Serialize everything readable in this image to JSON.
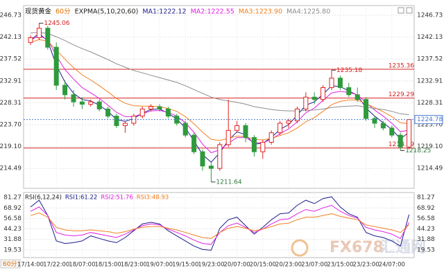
{
  "chart_data": [
    {
      "type": "candlestick",
      "title": "现货黄金",
      "period": "60分",
      "indicator": "EXPMA(5,10,20,60)",
      "categories": [
        "17/14:00",
        null,
        null,
        "17/22:00",
        null,
        null,
        "18/07:00",
        null,
        null,
        "18/15:00",
        null,
        null,
        "18/23:00",
        null,
        null,
        "19/07:00",
        null,
        null,
        "19/15:00",
        null,
        null,
        "19/23:00",
        null,
        null,
        "20/07:00",
        null,
        null,
        "20/15:00",
        null,
        null,
        "20/23:00",
        null,
        null,
        "23/07:00",
        null,
        null,
        "23/15:00",
        null,
        null,
        "23/23:00",
        null,
        null,
        "24/07:00",
        null,
        null
      ],
      "open": [
        1241.0,
        1242.0,
        1244.0,
        1240.0,
        1232.0,
        1230.0,
        1228.5,
        1228.0,
        1228.5,
        1227.0,
        1225.5,
        1223.5,
        1224.0,
        1225.5,
        1227.0,
        1227.5,
        1227.0,
        1225.5,
        1224.0,
        1221.5,
        1218.0,
        1215.0,
        1214.5,
        1219.5,
        1222.5,
        1223.5,
        1221.0,
        1218.0,
        1220.0,
        1222.0,
        1224.0,
        1224.5,
        1227.0,
        1229.5,
        1229.0,
        1231.5,
        1233.5,
        1231.5,
        1230.0,
        1229.0,
        1225.0,
        1224.0,
        1223.0,
        1221.5,
        1219.0
      ],
      "high": [
        1242.5,
        1245.06,
        1244.5,
        1241.0,
        1233.0,
        1231.0,
        1229.5,
        1229.0,
        1229.0,
        1227.5,
        1226.0,
        1224.5,
        1226.0,
        1227.5,
        1228.0,
        1228.0,
        1227.5,
        1226.0,
        1224.5,
        1222.0,
        1218.5,
        1216.0,
        1220.0,
        1229.0,
        1224.5,
        1224.0,
        1221.5,
        1220.5,
        1222.5,
        1224.5,
        1225.0,
        1227.5,
        1230.5,
        1230.5,
        1232.0,
        1235.18,
        1234.0,
        1232.5,
        1231.5,
        1229.5,
        1225.5,
        1224.5,
        1223.5,
        1222.0,
        1224.78
      ],
      "low": [
        1240.5,
        1241.5,
        1239.5,
        1231.0,
        1229.0,
        1227.5,
        1227.0,
        1227.5,
        1226.5,
        1225.0,
        1223.0,
        1222.0,
        1223.5,
        1225.0,
        1226.5,
        1226.5,
        1225.0,
        1223.5,
        1221.0,
        1217.5,
        1214.0,
        1211.64,
        1214.0,
        1219.0,
        1222.0,
        1220.0,
        1217.0,
        1216.5,
        1219.5,
        1221.5,
        1223.0,
        1224.0,
        1226.5,
        1228.0,
        1228.5,
        1231.0,
        1231.0,
        1229.5,
        1228.5,
        1224.5,
        1223.0,
        1222.5,
        1221.0,
        1218.25,
        1218.5
      ],
      "close": [
        1242.0,
        1244.0,
        1240.0,
        1232.0,
        1230.0,
        1228.5,
        1228.0,
        1228.5,
        1227.0,
        1225.5,
        1223.5,
        1224.0,
        1225.5,
        1227.0,
        1227.5,
        1227.0,
        1225.5,
        1224.0,
        1221.5,
        1218.0,
        1215.0,
        1214.5,
        1219.5,
        1222.5,
        1223.5,
        1221.0,
        1218.0,
        1220.0,
        1222.0,
        1224.0,
        1224.5,
        1227.0,
        1229.5,
        1229.0,
        1231.5,
        1233.5,
        1231.5,
        1230.0,
        1229.0,
        1225.0,
        1224.0,
        1223.0,
        1221.5,
        1219.0,
        1224.78
      ],
      "up_color": "#e02020",
      "down_color": "#2e9a3c",
      "series": [
        {
          "name": "MA1:1222.12",
          "color": "#1c1c8c",
          "values": [
            1241.5,
            1242.9,
            1241.3,
            1236.2,
            1232.7,
            1230.3,
            1229.0,
            1228.7,
            1227.8,
            1226.5,
            1224.8,
            1224.4,
            1225.0,
            1226.1,
            1226.9,
            1227.0,
            1226.1,
            1224.9,
            1223.0,
            1220.3,
            1217.4,
            1215.8,
            1217.8,
            1220.4,
            1222.2,
            1221.6,
            1219.6,
            1219.8,
            1221.0,
            1222.7,
            1223.7,
            1225.7,
            1227.8,
            1228.5,
            1230.1,
            1231.9,
            1231.7,
            1230.8,
            1229.9,
            1227.2,
            1225.5,
            1224.1,
            1222.7,
            1220.7,
            1222.12
          ]
        },
        {
          "name": "MA2:1222.55",
          "color": "#e020e0",
          "values": [
            1241.5,
            1242.4,
            1241.6,
            1238.2,
            1235.3,
            1233.3,
            1231.5,
            1230.4,
            1229.2,
            1227.8,
            1226.3,
            1225.4,
            1225.4,
            1226.0,
            1226.6,
            1226.7,
            1226.3,
            1225.5,
            1224.1,
            1222.1,
            1219.6,
            1217.8,
            1218.4,
            1219.8,
            1221.0,
            1221.0,
            1219.9,
            1219.9,
            1220.6,
            1221.8,
            1222.8,
            1224.3,
            1226.2,
            1227.2,
            1228.8,
            1230.4,
            1230.7,
            1230.5,
            1230.0,
            1228.3,
            1226.8,
            1225.5,
            1224.0,
            1222.2,
            1222.55
          ]
        },
        {
          "name": "MA3:1223.90",
          "color": "#f08020",
          "values": [
            1241.0,
            1241.6,
            1241.3,
            1239.4,
            1237.5,
            1235.7,
            1234.2,
            1233.1,
            1231.9,
            1230.6,
            1229.2,
            1228.2,
            1227.7,
            1227.6,
            1227.6,
            1227.5,
            1227.1,
            1226.5,
            1225.4,
            1223.9,
            1222.1,
            1220.6,
            1220.4,
            1220.8,
            1221.3,
            1221.2,
            1220.6,
            1220.5,
            1220.8,
            1221.4,
            1222.0,
            1223.0,
            1224.3,
            1225.2,
            1226.5,
            1227.9,
            1228.6,
            1228.9,
            1228.9,
            1228.1,
            1227.3,
            1226.4,
            1225.4,
            1224.1,
            1223.9
          ]
        },
        {
          "name": "MA4:1225.80",
          "color": "#8c8c8c",
          "values": [
            1243.0,
            1243.1,
            1242.9,
            1242.2,
            1241.4,
            1240.5,
            1239.7,
            1239.0,
            1238.2,
            1237.4,
            1236.5,
            1235.8,
            1235.1,
            1234.6,
            1234.1,
            1233.6,
            1233.1,
            1232.6,
            1231.9,
            1231.1,
            1230.3,
            1229.5,
            1229.0,
            1228.7,
            1228.4,
            1228.0,
            1227.5,
            1227.2,
            1226.9,
            1226.7,
            1226.6,
            1226.6,
            1226.7,
            1226.8,
            1227.0,
            1227.3,
            1227.5,
            1227.6,
            1227.7,
            1227.4,
            1227.1,
            1226.9,
            1226.5,
            1226.0,
            1225.8
          ]
        }
      ],
      "levels": [
        1235.36,
        1229.29,
        1218.79
      ],
      "level_color": "#d42020",
      "ylim": [
        1210.3,
        1248.77
      ],
      "yticks": [
        1246.73,
        1242.13,
        1237.52,
        1232.91,
        1228.31,
        {
          "value": 1223.7,
          "label": "1223.70"
        },
        {
          "value": 1219.1,
          "label": "1219.10"
        },
        1214.49
      ],
      "grid": true
    },
    {
      "type": "line",
      "title": "RSI(6,12,24)",
      "series": [
        {
          "name": "RSI1:61.22",
          "color": "#1c1c8c",
          "values": [
            70,
            78,
            60,
            30,
            27,
            28,
            30,
            36,
            33,
            30,
            28,
            34,
            42,
            50,
            52,
            50,
            42,
            36,
            30,
            24,
            20,
            19,
            45,
            55,
            58,
            48,
            38,
            46,
            55,
            62,
            63,
            72,
            78,
            74,
            80,
            82,
            70,
            62,
            58,
            40,
            36,
            34,
            30,
            24,
            61.22
          ]
        },
        {
          "name": "RSI2:51.76",
          "color": "#e020e0",
          "values": [
            65,
            70,
            60,
            40,
            37,
            36,
            37,
            40,
            38,
            36,
            34,
            38,
            43,
            48,
            50,
            49,
            44,
            40,
            36,
            31,
            27,
            26,
            40,
            48,
            51,
            46,
            40,
            44,
            50,
            55,
            56,
            62,
            67,
            65,
            69,
            72,
            65,
            60,
            57,
            46,
            43,
            41,
            38,
            33,
            51.76
          ]
        },
        {
          "name": "RSI3:48.93",
          "color": "#f08020",
          "values": [
            60,
            63,
            58,
            46,
            43,
            42,
            42,
            43,
            42,
            41,
            39,
            41,
            44,
            46,
            47,
            47,
            45,
            43,
            40,
            37,
            34,
            33,
            40,
            45,
            47,
            45,
            42,
            44,
            47,
            50,
            51,
            55,
            58,
            58,
            60,
            62,
            59,
            57,
            55,
            49,
            47,
            45,
            43,
            40,
            48.93
          ]
        }
      ],
      "ylim": [
        10.35,
        87.1
      ],
      "yticks": [
        81.27,
        68.92,
        56.58,
        44.23,
        31.88,
        19.53
      ],
      "grid": true
    }
  ],
  "watermark": {
    "brand": "FX678",
    "name": "汇通网"
  }
}
